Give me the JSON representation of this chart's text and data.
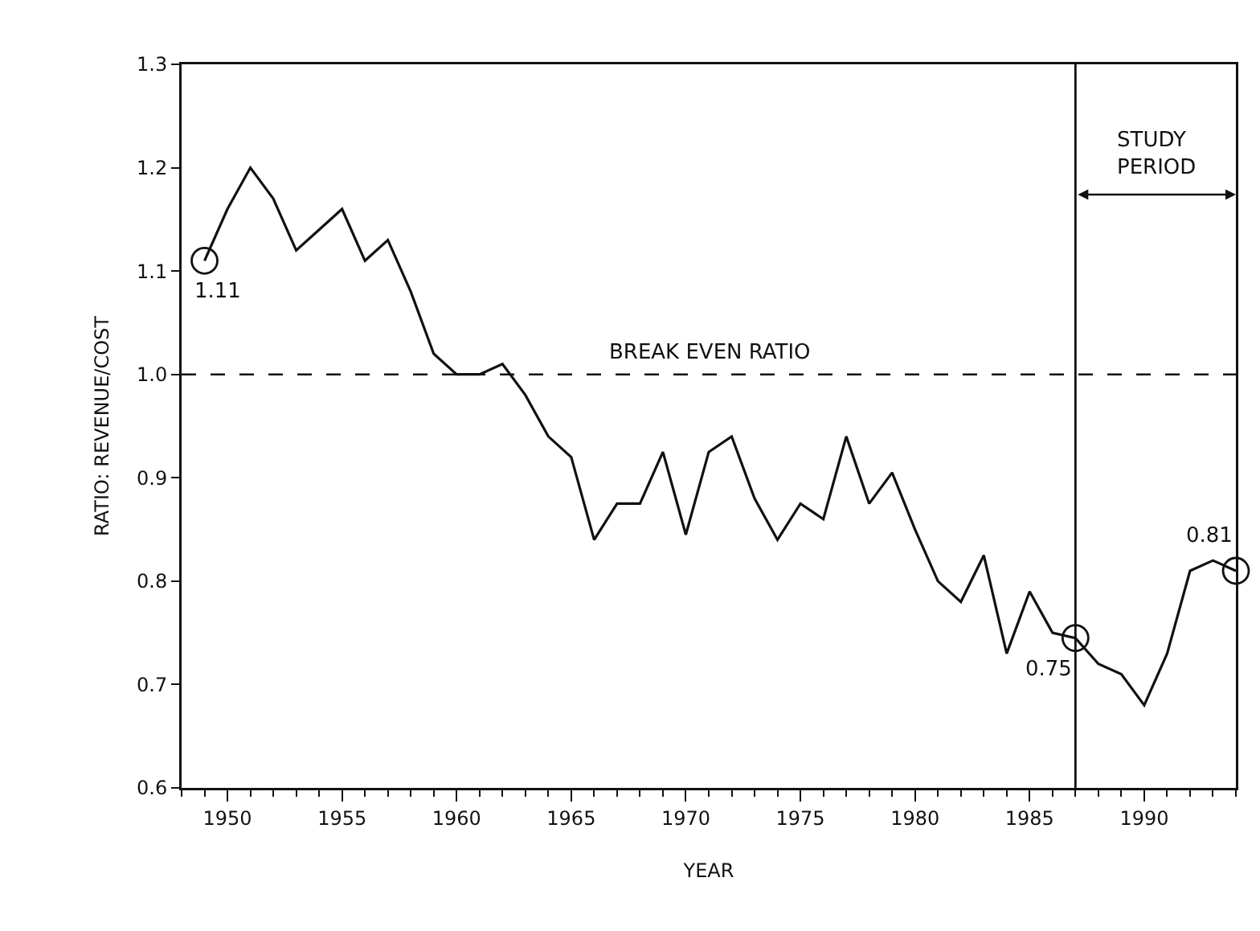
{
  "chart_data": {
    "type": "line",
    "xlabel": "YEAR",
    "ylabel": "RATIO: REVENUE/COST",
    "x": [
      1949,
      1950,
      1951,
      1952,
      1953,
      1954,
      1955,
      1956,
      1957,
      1958,
      1959,
      1960,
      1961,
      1962,
      1963,
      1964,
      1965,
      1966,
      1967,
      1968,
      1969,
      1970,
      1971,
      1972,
      1973,
      1974,
      1975,
      1976,
      1977,
      1978,
      1979,
      1980,
      1981,
      1982,
      1983,
      1984,
      1985,
      1986,
      1987,
      1988,
      1989,
      1990,
      1991,
      1992,
      1993,
      1994
    ],
    "series": [
      {
        "color": "#111111",
        "values": [
          1.11,
          1.16,
          1.2,
          1.17,
          1.12,
          1.14,
          1.16,
          1.11,
          1.13,
          1.08,
          1.02,
          1.0,
          1.0,
          1.01,
          0.98,
          0.94,
          0.92,
          0.84,
          0.875,
          0.875,
          0.925,
          0.845,
          0.925,
          0.94,
          0.88,
          0.84,
          0.875,
          0.86,
          0.94,
          0.875,
          0.905,
          0.85,
          0.8,
          0.78,
          0.825,
          0.73,
          0.79,
          0.75,
          0.745,
          0.72,
          0.71,
          0.68,
          0.73,
          0.81,
          0.82,
          0.81
        ]
      },
      {
        "type": "scatter",
        "marker": "circle",
        "color": "#111111",
        "x": [
          1949,
          1987,
          1994
        ],
        "values": [
          1.11,
          0.745,
          0.81
        ],
        "value_labels": [
          "1.11",
          "0.75",
          "0.81"
        ]
      }
    ],
    "marker": "none",
    "line_style": "solid",
    "xlim": [
      1948,
      1994
    ],
    "xticks": [
      1950,
      1955,
      1960,
      1965,
      1970,
      1975,
      1980,
      1985,
      1990
    ],
    "ylim": [
      0.6,
      1.3
    ],
    "yticks": [
      {
        "value": 0.6,
        "label": "0.6"
      },
      {
        "value": 0.7,
        "label": "0.7"
      },
      {
        "value": 0.8,
        "label": "0.8"
      },
      {
        "value": 0.9,
        "label": "0.9"
      },
      {
        "value": 1.0,
        "label": "1.0"
      },
      {
        "value": 1.1,
        "label": "1.1"
      },
      {
        "value": 1.2,
        "label": "1.2"
      },
      {
        "value": 1.3,
        "label": "1.3"
      }
    ],
    "grid": false,
    "ref_lines": [
      {
        "axis": "y",
        "value": 1.0,
        "label": "BREAK EVEN RATIO",
        "line_style": "dashed"
      },
      {
        "axis": "x",
        "value": 1987,
        "line_style": "solid"
      }
    ],
    "annotations": [
      "STUDY PERIOD"
    ]
  }
}
